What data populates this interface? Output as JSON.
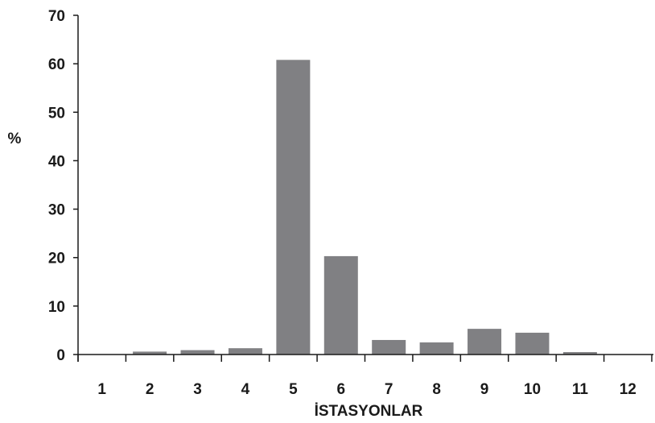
{
  "chart_data": {
    "type": "bar",
    "xlabel": "İSTASYONLAR",
    "ylabel": "%",
    "categories": [
      "1",
      "2",
      "3",
      "4",
      "5",
      "6",
      "7",
      "8",
      "9",
      "10",
      "11",
      "12"
    ],
    "values": [
      0,
      0.6,
      0.9,
      1.3,
      60.8,
      20.3,
      3.0,
      2.5,
      5.3,
      4.5,
      0.5,
      0
    ],
    "ylim": [
      0,
      70
    ],
    "yticks": [
      "0",
      "10",
      "20",
      "30",
      "40",
      "50",
      "60",
      "70"
    ],
    "grid": false,
    "legend": "none",
    "bar_color": "#808083",
    "axis_color": "#1a1a1a"
  }
}
